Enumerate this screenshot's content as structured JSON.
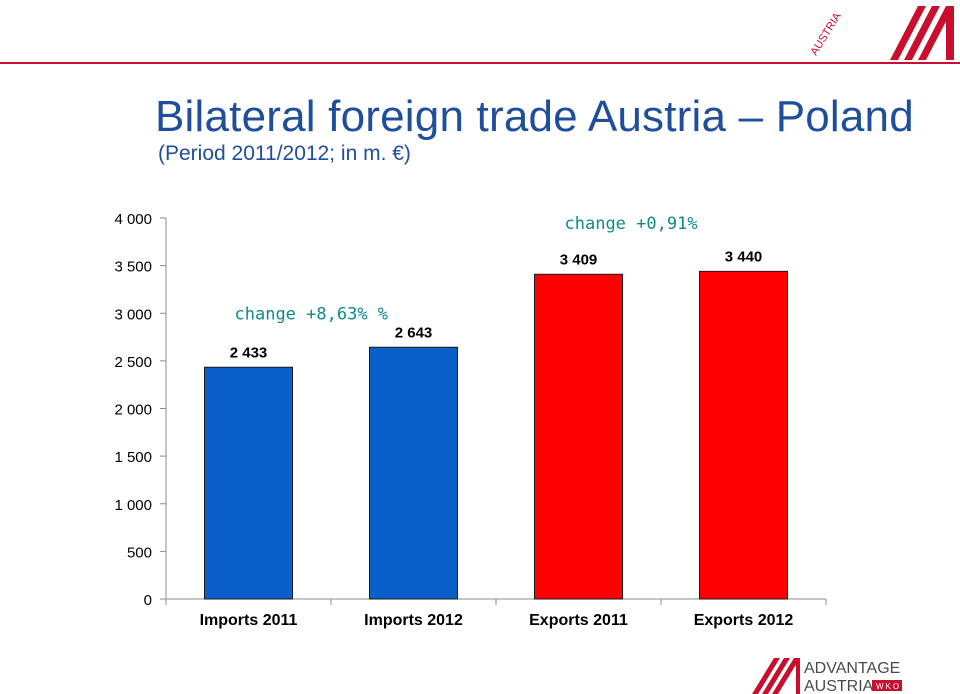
{
  "header": {
    "title": "Bilateral foreign trade Austria – Poland",
    "subtitle": "(Period 2011/2012; in m. €)"
  },
  "logos": {
    "top_logo_text": "AUSTRIA",
    "bottom_logo_line1": "ADVANTAGE",
    "bottom_logo_line2": "AUSTRIA",
    "bottom_logo_badge": "WKO"
  },
  "colors": {
    "imports": "#0a5fc8",
    "exports": "#ff0000",
    "brand": "#c8102e",
    "annotation": "#0f8a8a"
  },
  "chart_data": {
    "type": "bar",
    "categories": [
      "Imports 2011",
      "Imports 2012",
      "Exports 2011",
      "Exports 2012"
    ],
    "values": [
      2433,
      2643,
      3409,
      3440
    ],
    "data_labels": [
      "2 433",
      "2 643",
      "3 409",
      "3 440"
    ],
    "bar_colors": [
      "#0a5fc8",
      "#0a5fc8",
      "#ff0000",
      "#ff0000"
    ],
    "ylim": [
      0,
      4000
    ],
    "yticks": [
      0,
      500,
      1000,
      1500,
      2000,
      2500,
      3000,
      3500,
      4000
    ],
    "ytick_labels": [
      "0",
      "500",
      "1 000",
      "1 500",
      "2 000",
      "2 500",
      "3 000",
      "3 500",
      "4 000"
    ],
    "xlabel": "",
    "ylabel": "",
    "grid": false,
    "legend": "none",
    "annotations": [
      {
        "text": "change +8,63% %",
        "x": "Imports 2011",
        "y": 3000
      },
      {
        "text": "change +0,91%",
        "x": "Exports 2011",
        "y": 3950
      }
    ]
  }
}
